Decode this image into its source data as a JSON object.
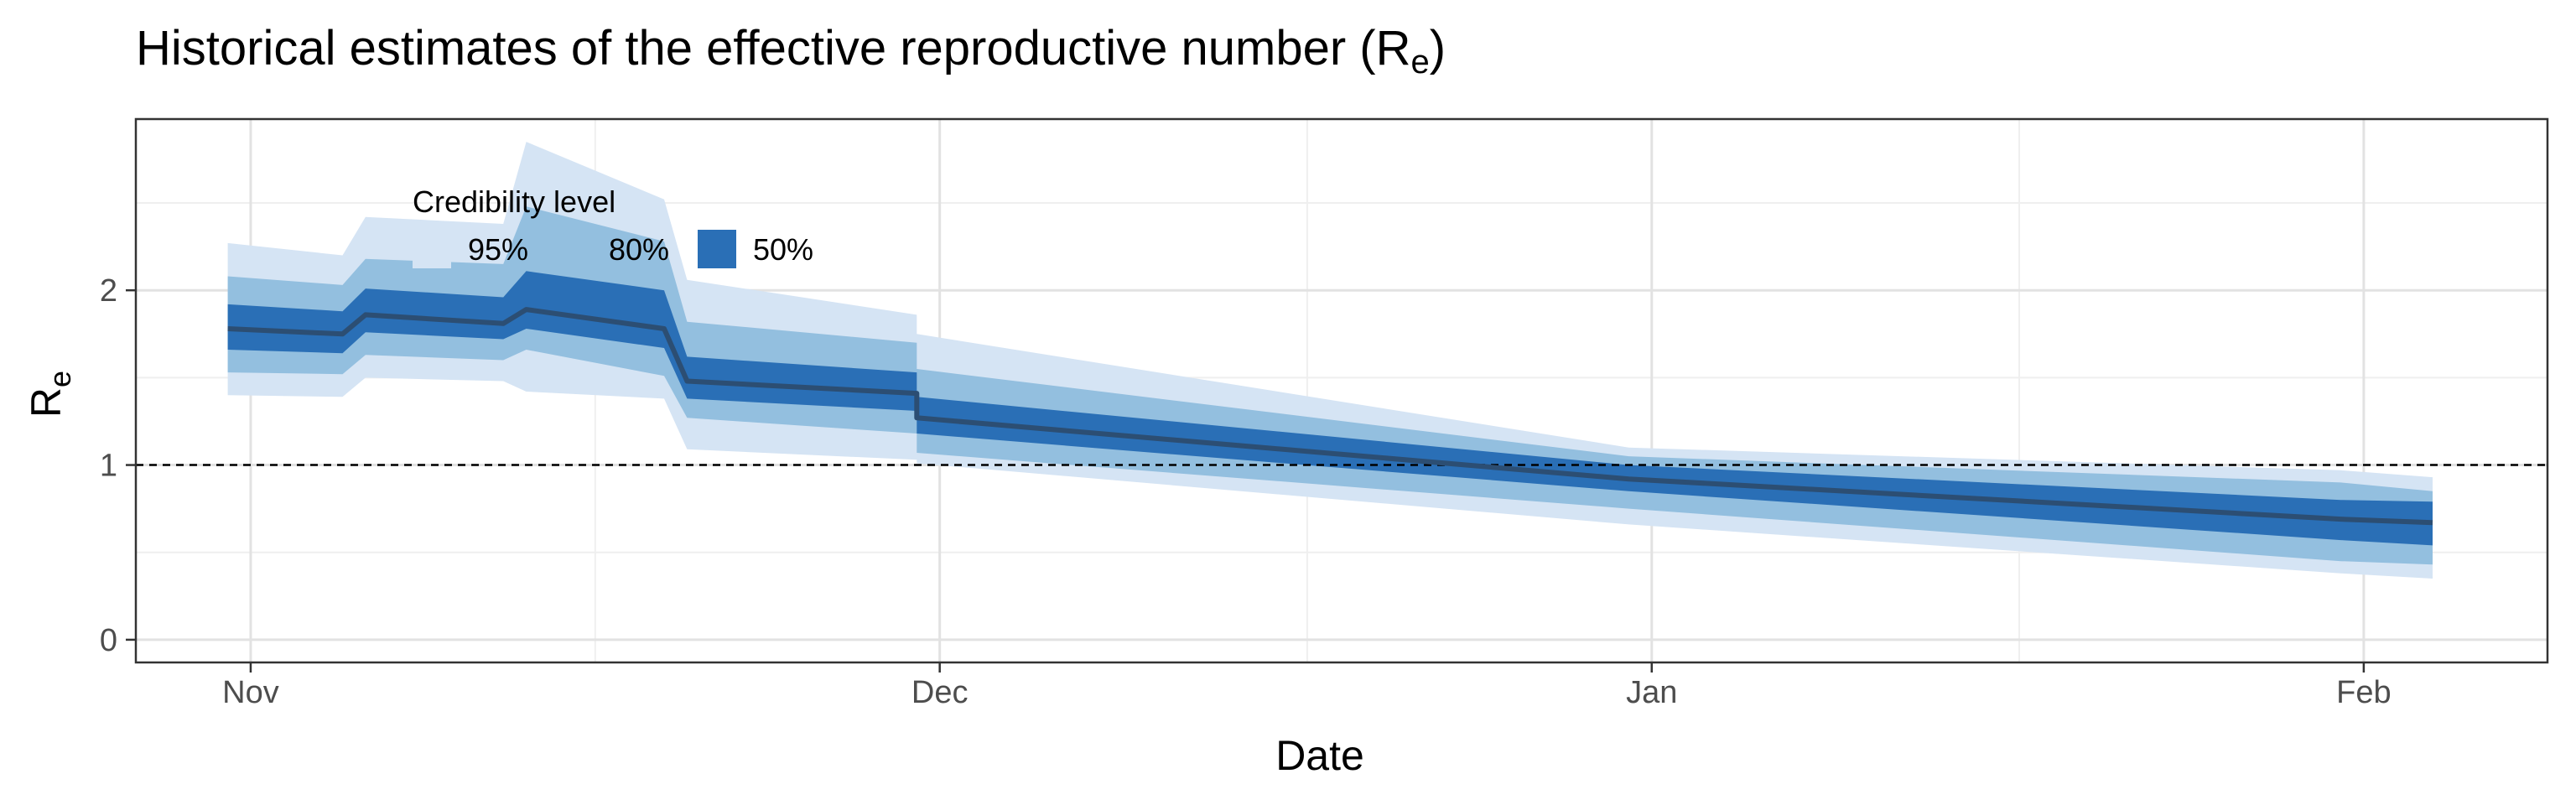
{
  "chart_data": {
    "type": "area",
    "title": "Historical estimates of the effective reproductive number (R",
    "title_subscript": "e",
    "title_suffix": ")",
    "xlabel": "Date",
    "ylabel": "R",
    "ylabel_subscript": "e",
    "x_ticks": [
      "Nov",
      "Dec",
      "Jan",
      "Feb"
    ],
    "x_tick_dates": [
      "2020-11-01",
      "2020-12-01",
      "2021-01-01",
      "2021-02-01"
    ],
    "xlim": [
      "2020-10-27",
      "2021-02-09"
    ],
    "y_ticks": [
      "0",
      "1",
      "2"
    ],
    "y_tick_values": [
      0,
      1,
      2
    ],
    "ylim": [
      -0.13,
      2.98
    ],
    "reference_line": 1,
    "grid": true,
    "legend": {
      "title": "Credibility level",
      "placement": "top-left inside",
      "entries": [
        {
          "label": "95%",
          "color": "#d5e4f4"
        },
        {
          "label": "80%",
          "color": "#93bfdf"
        },
        {
          "label": "50%",
          "color": "#2a6fb6"
        }
      ]
    },
    "colors": {
      "median": "#2c4e73",
      "band95": "#d5e4f4",
      "band80": "#93bfdf",
      "band50": "#2a6fb6"
    },
    "series": [
      {
        "dates": [
          "2020-10-31",
          "2020-11-05",
          "2020-11-06",
          "2020-11-12",
          "2020-11-13",
          "2020-11-19",
          "2020-11-20",
          "2020-11-30",
          "2020-11-30",
          "2020-12-31",
          "2021-01-31",
          "2021-02-04"
        ],
        "median": [
          1.78,
          1.75,
          1.86,
          1.81,
          1.89,
          1.78,
          1.48,
          1.41,
          1.27,
          0.92,
          0.69,
          0.67
        ],
        "lo50": [
          1.66,
          1.64,
          1.76,
          1.72,
          1.78,
          1.67,
          1.38,
          1.31,
          1.18,
          0.85,
          0.57,
          0.54
        ],
        "hi50": [
          1.92,
          1.88,
          2.01,
          1.96,
          2.11,
          2.0,
          1.62,
          1.53,
          1.39,
          1.0,
          0.8,
          0.79
        ],
        "lo80": [
          1.53,
          1.52,
          1.63,
          1.6,
          1.66,
          1.51,
          1.27,
          1.18,
          1.07,
          0.75,
          0.45,
          0.43
        ],
        "hi80": [
          2.08,
          2.03,
          2.18,
          2.15,
          2.48,
          2.28,
          1.82,
          1.7,
          1.55,
          1.05,
          0.9,
          0.85
        ],
        "lo95": [
          1.4,
          1.39,
          1.5,
          1.48,
          1.42,
          1.38,
          1.09,
          1.03,
          1.01,
          0.66,
          0.38,
          0.35
        ],
        "hi95": [
          2.27,
          2.2,
          2.42,
          2.38,
          2.85,
          2.52,
          2.06,
          1.86,
          1.75,
          1.1,
          0.97,
          0.93
        ]
      }
    ]
  }
}
